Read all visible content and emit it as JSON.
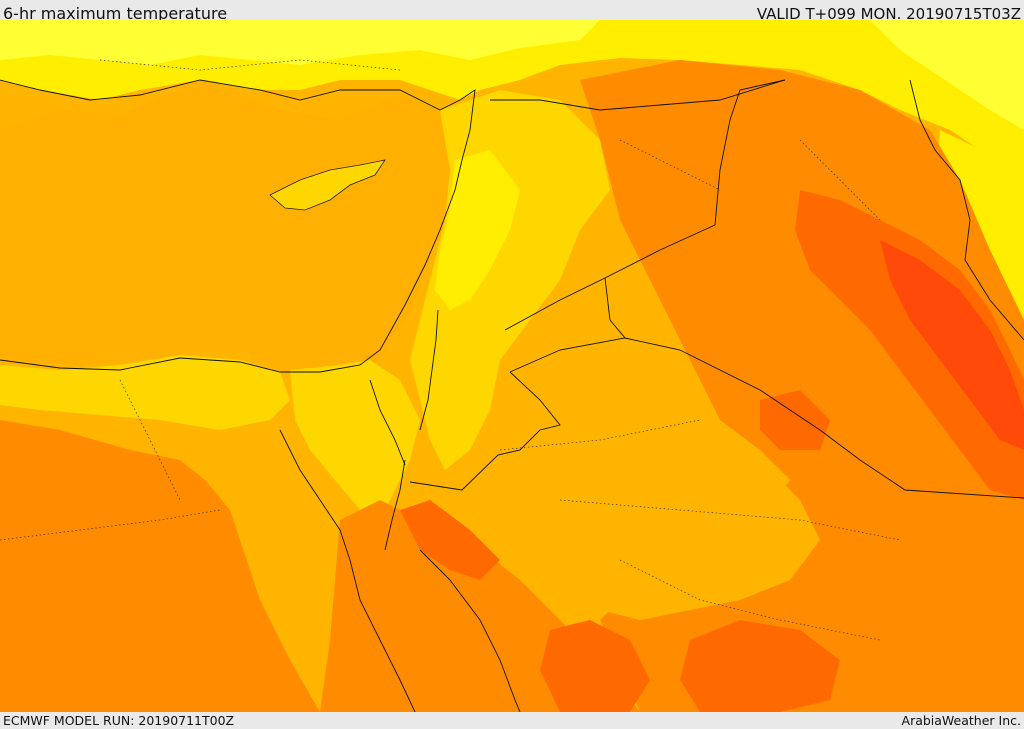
{
  "header": {
    "title": "6-hr maximum temperature",
    "valid_time": "VALID T+099 MON. 20190715T03Z"
  },
  "footer": {
    "model_run": "ECMWF MODEL RUN: 20190711T00Z",
    "credit": "ArabiaWeather Inc."
  },
  "map": {
    "field": "6-hr maximum temperature",
    "palette": {
      "light_yellow": "#ffff33",
      "yellow": "#ffee00",
      "gold": "#ffd700",
      "amber": "#ffb400",
      "orange": "#ff8c00",
      "dark_orange": "#ff6a00",
      "red_orange": "#ff4a0a"
    }
  }
}
